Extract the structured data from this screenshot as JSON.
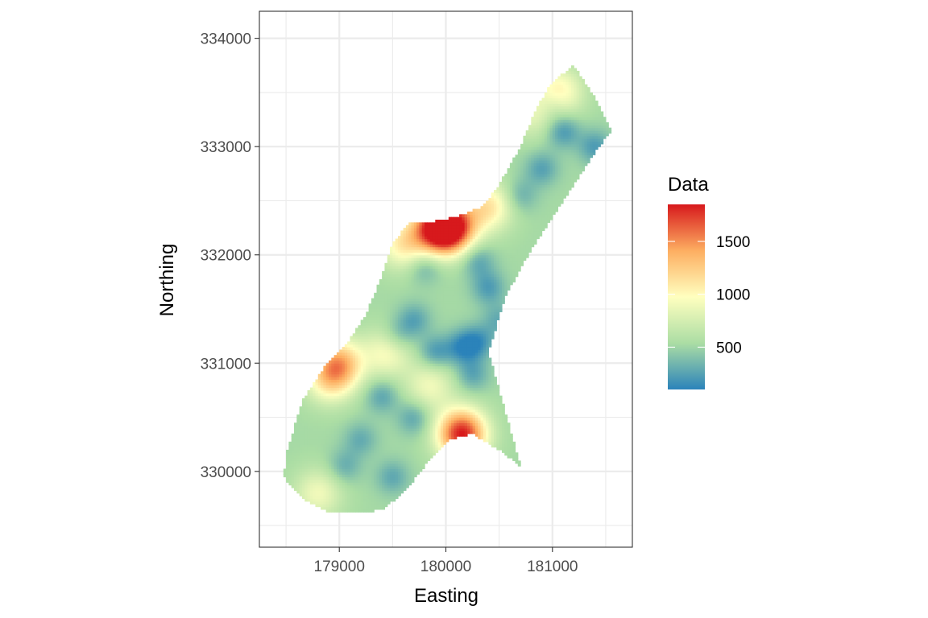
{
  "chart_data": {
    "type": "heatmap",
    "title": "",
    "xlabel": "Easting",
    "ylabel": "Northing",
    "xlim": [
      178250,
      181750
    ],
    "ylim": [
      329300,
      334250
    ],
    "x_ticks": [
      179000,
      180000,
      181000
    ],
    "x_tick_labels": [
      "179000",
      "180000",
      "181000"
    ],
    "y_ticks": [
      330000,
      331000,
      332000,
      333000,
      334000
    ],
    "y_tick_labels": [
      "330000",
      "331000",
      "332000",
      "333000",
      "334000"
    ],
    "grid": true,
    "aspect": "equal",
    "legend": {
      "title": "Data",
      "placement": "right",
      "range": [
        100,
        1850
      ],
      "breaks": [
        500,
        1000,
        1500
      ],
      "break_labels": [
        "500",
        "1000",
        "1500"
      ],
      "palette": [
        "#2b83ba",
        "#abdda4",
        "#ffffbf",
        "#fdae61",
        "#d7191c"
      ]
    },
    "region_boundary": [
      [
        178500,
        330150
      ],
      [
        178650,
        330650
      ],
      [
        178850,
        330950
      ],
      [
        179050,
        331150
      ],
      [
        179250,
        331450
      ],
      [
        179400,
        331800
      ],
      [
        179500,
        332100
      ],
      [
        179650,
        332300
      ],
      [
        179850,
        332300
      ],
      [
        180100,
        332350
      ],
      [
        180350,
        332450
      ],
      [
        180500,
        332650
      ],
      [
        180700,
        333000
      ],
      [
        180850,
        333350
      ],
      [
        181000,
        333600
      ],
      [
        181200,
        333750
      ],
      [
        181400,
        333450
      ],
      [
        181550,
        333150
      ],
      [
        181400,
        332950
      ],
      [
        181100,
        332500
      ],
      [
        180800,
        332050
      ],
      [
        180550,
        331600
      ],
      [
        180400,
        331100
      ],
      [
        180500,
        330750
      ],
      [
        180600,
        330400
      ],
      [
        180700,
        330050
      ],
      [
        180500,
        330200
      ],
      [
        180250,
        330350
      ],
      [
        180050,
        330300
      ],
      [
        179800,
        330050
      ],
      [
        179600,
        329800
      ],
      [
        179400,
        329650
      ],
      [
        179200,
        329620
      ],
      [
        178900,
        329620
      ],
      [
        178650,
        329750
      ],
      [
        178480,
        329950
      ]
    ],
    "background_level": 520,
    "hotspots": [
      {
        "x": 180150,
        "y": 330350,
        "value": 1850
      },
      {
        "x": 180050,
        "y": 332250,
        "value": 1800
      },
      {
        "x": 179900,
        "y": 332250,
        "value": 1500
      },
      {
        "x": 179600,
        "y": 332100,
        "value": 1050
      },
      {
        "x": 179000,
        "y": 331000,
        "value": 1300
      },
      {
        "x": 178900,
        "y": 330850,
        "value": 1000
      },
      {
        "x": 179450,
        "y": 331100,
        "value": 950
      },
      {
        "x": 179850,
        "y": 330800,
        "value": 900
      },
      {
        "x": 181050,
        "y": 333500,
        "value": 1100
      },
      {
        "x": 180400,
        "y": 332450,
        "value": 1100
      },
      {
        "x": 178800,
        "y": 329800,
        "value": 900
      },
      {
        "x": 180800,
        "y": 333300,
        "value": 800
      }
    ],
    "lowspots": [
      {
        "x": 179900,
        "y": 331100,
        "value": 200
      },
      {
        "x": 180150,
        "y": 331150,
        "value": 180
      },
      {
        "x": 180300,
        "y": 331200,
        "value": 200
      },
      {
        "x": 179700,
        "y": 331400,
        "value": 250
      },
      {
        "x": 180400,
        "y": 331700,
        "value": 230
      },
      {
        "x": 180300,
        "y": 331950,
        "value": 260
      },
      {
        "x": 179800,
        "y": 331900,
        "value": 280
      },
      {
        "x": 179400,
        "y": 330700,
        "value": 260
      },
      {
        "x": 179700,
        "y": 330500,
        "value": 260
      },
      {
        "x": 179200,
        "y": 330300,
        "value": 300
      },
      {
        "x": 179050,
        "y": 330050,
        "value": 300
      },
      {
        "x": 179500,
        "y": 329950,
        "value": 280
      },
      {
        "x": 180250,
        "y": 330900,
        "value": 260
      },
      {
        "x": 181100,
        "y": 333150,
        "value": 180
      },
      {
        "x": 181400,
        "y": 333000,
        "value": 220
      },
      {
        "x": 180900,
        "y": 332800,
        "value": 250
      },
      {
        "x": 181000,
        "y": 333400,
        "value": 280
      },
      {
        "x": 180700,
        "y": 332550,
        "value": 300
      },
      {
        "x": 180500,
        "y": 331400,
        "value": 300
      },
      {
        "x": 179550,
        "y": 331250,
        "value": 300
      }
    ]
  }
}
